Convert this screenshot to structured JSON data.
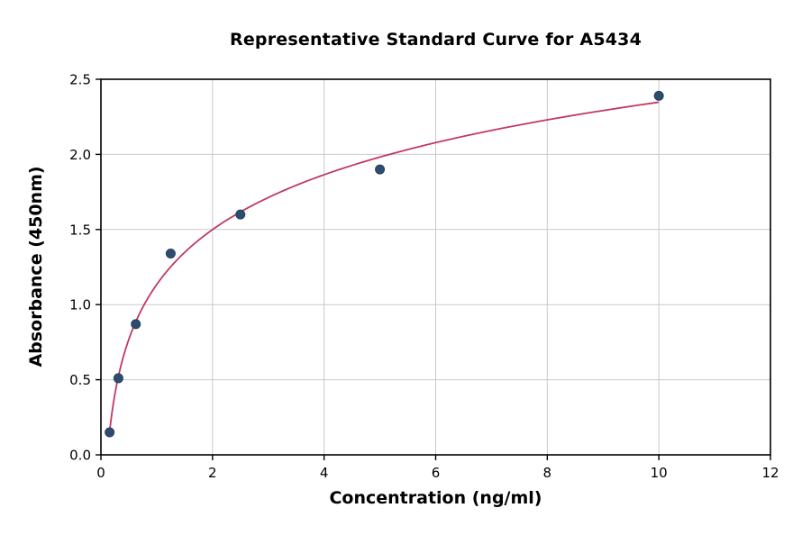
{
  "figure": {
    "background": "#ffffff"
  },
  "chart_data": {
    "type": "scatter",
    "title": "Representative Standard Curve for A5434",
    "xlabel": "Concentration (ng/ml)",
    "ylabel": "Absorbance (450nm)",
    "points": {
      "x": [
        0.156,
        0.313,
        0.625,
        1.25,
        2.5,
        5,
        10
      ],
      "y": [
        0.15,
        0.51,
        0.87,
        1.34,
        1.6,
        1.9,
        2.39
      ]
    },
    "fit": {
      "type": "logarithmic",
      "extent": "first-to-last-point"
    },
    "xlim": [
      0,
      12
    ],
    "ylim": [
      0,
      2.5
    ],
    "xticks": [
      0,
      2,
      4,
      6,
      8,
      10,
      12
    ],
    "xtick_labels": [
      "0",
      "2",
      "4",
      "6",
      "8",
      "10",
      "12"
    ],
    "yticks": [
      0,
      0.5,
      1.0,
      1.5,
      2.0,
      2.5
    ],
    "ytick_labels": [
      "0.0",
      "0.5",
      "1.0",
      "1.5",
      "2.0",
      "2.5"
    ],
    "grid": true,
    "legend": "none",
    "colors": {
      "point_fill": "#2e4d6e",
      "point_edge": "#24405c",
      "curve": "#c13a63",
      "grid": "#c9c9c9",
      "spine": "#000000",
      "text": "#000000"
    }
  }
}
